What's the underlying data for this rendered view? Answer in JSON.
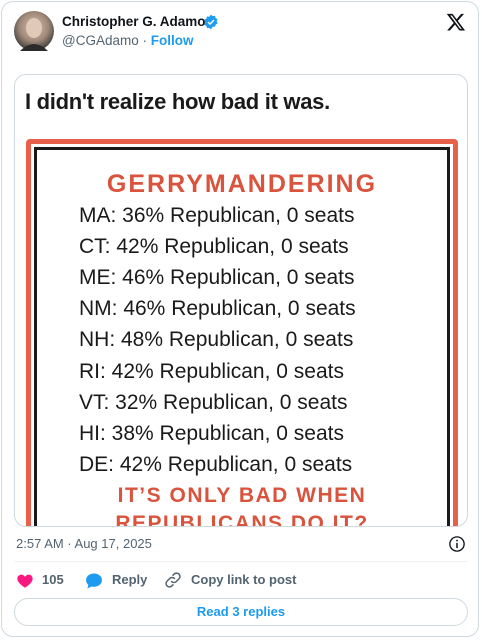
{
  "header": {
    "name": "Christopher G. Adamo",
    "handle": "@CGAdamo",
    "separator": "·",
    "follow": "Follow"
  },
  "image": {
    "caption": "I didn't realize how bad it was.",
    "title": "GERRYMANDERING",
    "lines": [
      "MA: 36% Republican, 0 seats",
      "CT: 42% Republican, 0 seats",
      "ME: 46% Republican, 0 seats",
      "NM: 46% Republican, 0 seats",
      "NH: 48% Republican, 0 seats",
      "RI: 42% Republican, 0 seats",
      "VT: 32% Republican, 0 seats",
      "HI: 38% Republican, 0 seats",
      "DE: 42% Republican, 0 seats"
    ],
    "footer": [
      "IT’S ONLY BAD WHEN",
      "REPUBLICANS DO IT?"
    ]
  },
  "timestamp": "2:57 AM · Aug 17, 2025",
  "actions": {
    "likes": "105",
    "reply": "Reply",
    "copy": "Copy link to post"
  },
  "button": "Read 3 replies"
}
